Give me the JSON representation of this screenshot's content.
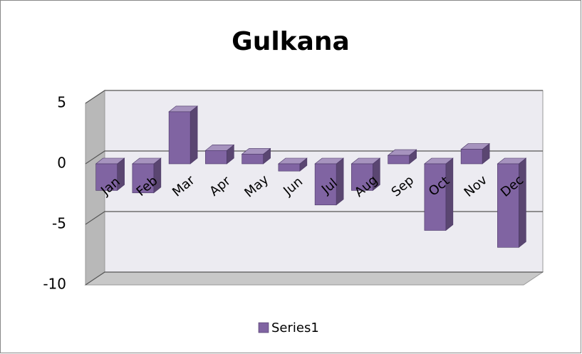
{
  "chart_data": {
    "type": "bar3d",
    "title": "Gulkana",
    "categories": [
      "Jan",
      "Feb",
      "Mar",
      "Apr",
      "May",
      "Jun",
      "Jul",
      "Aug",
      "Sep",
      "Oct",
      "Nov",
      "Dec"
    ],
    "series": [
      {
        "name": "Series1",
        "color": "#8064a2",
        "values": [
          -2.2,
          -2.4,
          4.3,
          1.1,
          0.8,
          -0.6,
          -3.4,
          -2.2,
          0.7,
          -5.5,
          1.2,
          -6.9
        ]
      }
    ],
    "ylim": [
      -10,
      5
    ],
    "yticks": [
      -10,
      -5,
      0,
      5
    ],
    "grid": true,
    "legend": "bottom"
  }
}
